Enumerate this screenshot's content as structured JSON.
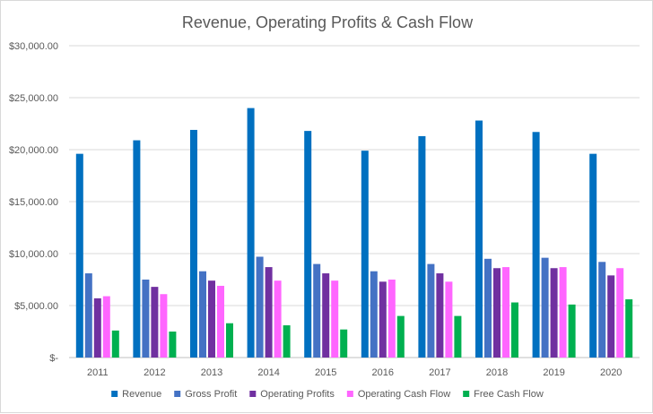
{
  "chart_data": {
    "type": "bar",
    "title": "Revenue, Operating Profits & Cash Flow",
    "xlabel": "",
    "ylabel": "",
    "ylim": [
      0,
      30000
    ],
    "y_ticks": [
      0,
      5000,
      10000,
      15000,
      20000,
      25000,
      30000
    ],
    "y_tick_labels": [
      "$-",
      "$5,000.00",
      "$10,000.00",
      "$15,000.00",
      "$20,000.00",
      "$25,000.00",
      "$30,000.00"
    ],
    "grid": true,
    "legend_position": "bottom",
    "categories": [
      "2011",
      "2012",
      "2013",
      "2014",
      "2015",
      "2016",
      "2017",
      "2018",
      "2019",
      "2020"
    ],
    "series": [
      {
        "name": "Revenue",
        "color": "#0070c0",
        "values": [
          19600,
          20900,
          21900,
          24000,
          21800,
          19900,
          21300,
          22800,
          21700,
          19600
        ]
      },
      {
        "name": "Gross Profit",
        "color": "#4472c4",
        "values": [
          8100,
          7500,
          8300,
          9700,
          9000,
          8300,
          9000,
          9500,
          9600,
          9200
        ]
      },
      {
        "name": "Operating Profits",
        "color": "#7030a0",
        "values": [
          5700,
          6800,
          7400,
          8700,
          8100,
          7300,
          8100,
          8600,
          8600,
          7900
        ]
      },
      {
        "name": "Operating Cash Flow",
        "color": "#ff66ff",
        "values": [
          5900,
          6100,
          6900,
          7400,
          7400,
          7500,
          7300,
          8700,
          8700,
          8600
        ]
      },
      {
        "name": "Free Cash Flow",
        "color": "#00b050",
        "values": [
          2600,
          2500,
          3300,
          3100,
          2700,
          4000,
          4000,
          5300,
          5100,
          5600
        ]
      }
    ]
  }
}
